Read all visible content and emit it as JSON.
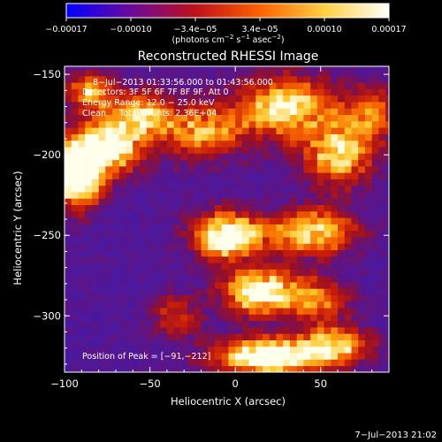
{
  "chart_data": {
    "type": "heatmap",
    "title": "Reconstructed RHESSI Image",
    "xlabel": "Heliocentric X (arcsec)",
    "ylabel": "Heliocentric Y (arcsec)",
    "xlim": [
      -100,
      90
    ],
    "ylim": [
      -335,
      -145
    ],
    "x_ticks": [
      -100,
      -50,
      0,
      50
    ],
    "x_tick_labels": [
      "−100",
      "−50",
      "0",
      "50"
    ],
    "y_ticks": [
      -150,
      -200,
      -250,
      -300
    ],
    "y_tick_labels": [
      "−150",
      "−200",
      "−250",
      "−300"
    ],
    "colorbar": {
      "range": [
        -0.00017,
        0.00017
      ],
      "tick_labels": [
        "−0.00017",
        "−0.00010",
        "−3.4e−05",
        "3.4e−05",
        "0.00010",
        "0.00017"
      ],
      "unit_line1": "(photons cm",
      "unit_sup1": "−2",
      "unit_mid1": " s",
      "unit_sup2": "−1",
      "unit_mid2": " asec",
      "unit_sup3": "−2",
      "unit_end": ")",
      "colors": [
        "#0000ff",
        "#6a0a9c",
        "#c0101a",
        "#ff6000",
        "#ffd040",
        "#ffffff"
      ]
    },
    "annotations": [
      "8−Jul−2013 01:33:56.000 to 01:43:56.000",
      "Detectors: 3F 5F 6F 7F 8F 9F, Att 0",
      "Energy Range: 12.0 − 25.0 keV",
      "Clean     Total counts: 2.36E+04"
    ],
    "peak_label": "Position of Peak = [−91,−212]",
    "hotspots": [
      {
        "x": -92,
        "y": -212,
        "amp": 1.0,
        "sx": 10,
        "sy": 14
      },
      {
        "x": -75,
        "y": -195,
        "amp": 0.8,
        "sx": 14,
        "sy": 12
      },
      {
        "x": -55,
        "y": -175,
        "amp": 0.55,
        "sx": 12,
        "sy": 10
      },
      {
        "x": -85,
        "y": -160,
        "amp": 0.6,
        "sx": 10,
        "sy": 8
      },
      {
        "x": -20,
        "y": -185,
        "amp": 0.55,
        "sx": 18,
        "sy": 12
      },
      {
        "x": 30,
        "y": -170,
        "amp": 0.7,
        "sx": 20,
        "sy": 14
      },
      {
        "x": 60,
        "y": -200,
        "amp": 0.65,
        "sx": 14,
        "sy": 14
      },
      {
        "x": 80,
        "y": -175,
        "amp": 0.5,
        "sx": 10,
        "sy": 12
      },
      {
        "x": -5,
        "y": -250,
        "amp": 0.9,
        "sx": 14,
        "sy": 10
      },
      {
        "x": 45,
        "y": -248,
        "amp": 0.7,
        "sx": 18,
        "sy": 10
      },
      {
        "x": 15,
        "y": -285,
        "amp": 0.85,
        "sx": 16,
        "sy": 10
      },
      {
        "x": 50,
        "y": -290,
        "amp": 0.45,
        "sx": 12,
        "sy": 10
      },
      {
        "x": 20,
        "y": -325,
        "amp": 0.95,
        "sx": 22,
        "sy": 8
      },
      {
        "x": 60,
        "y": -318,
        "amp": 0.6,
        "sx": 14,
        "sy": 8
      },
      {
        "x": -35,
        "y": -300,
        "amp": 0.35,
        "sx": 10,
        "sy": 10
      }
    ]
  },
  "timestamp": "7−Jul−2013 21:02"
}
